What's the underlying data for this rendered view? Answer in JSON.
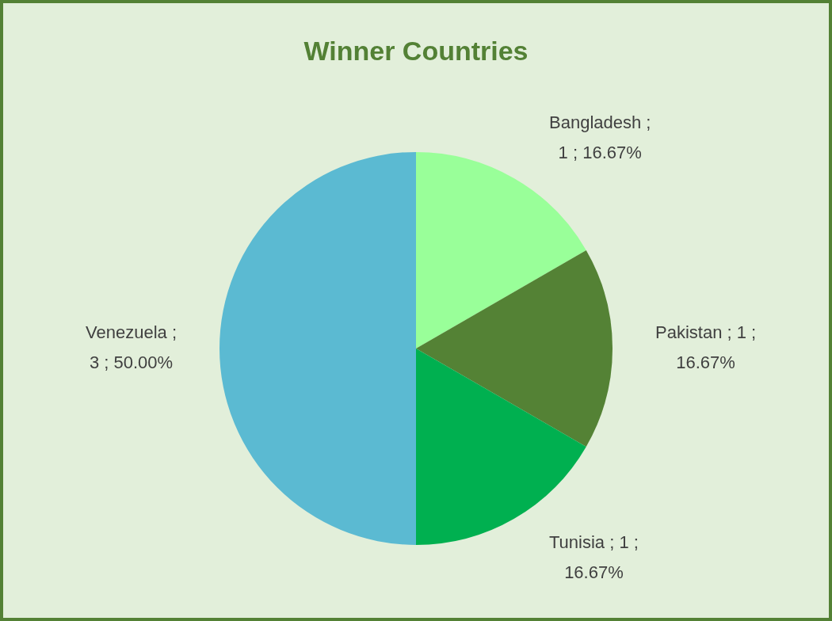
{
  "chart_data": {
    "type": "pie",
    "title": "Winner Countries",
    "categories": [
      "Bangladesh",
      "Pakistan",
      "Tunisia",
      "Venezuela"
    ],
    "values": [
      1,
      1,
      1,
      3
    ],
    "colors": [
      "#99ff99",
      "#548235",
      "#00b050",
      "#5bbad2"
    ],
    "value_labels": [
      "; 1 ; 16.67%",
      "; 1 ; 16.67%",
      "; 1 ; 16.67%",
      "; 3 ; 50.00%"
    ]
  }
}
